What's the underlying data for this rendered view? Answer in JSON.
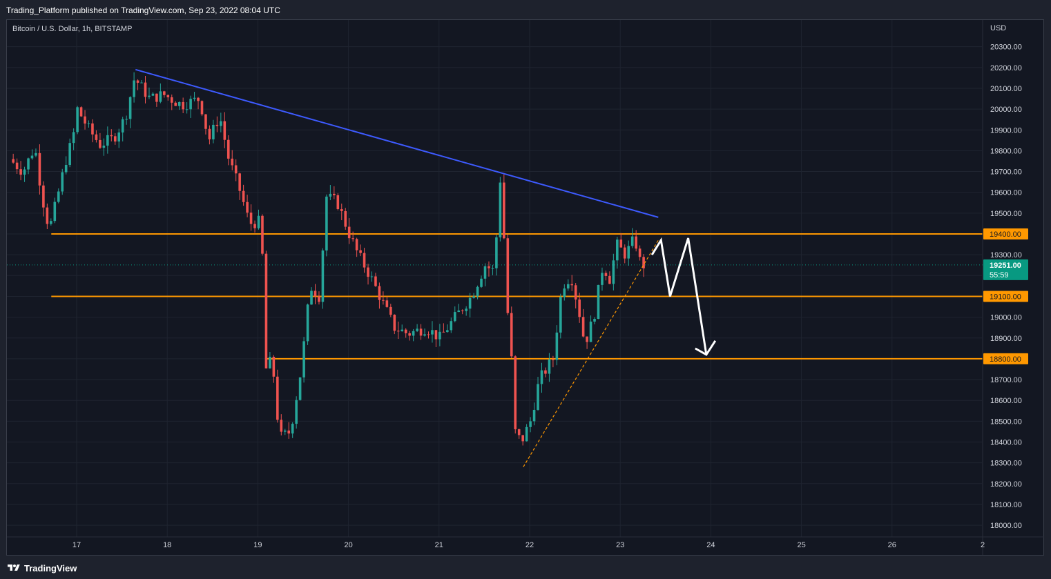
{
  "header": {
    "published": "Trading_Platform published on TradingView.com, Sep 23, 2022 08:04 UTC",
    "symbol": "Bitcoin / U.S. Dollar, 1h, BITSTAMP"
  },
  "footer": {
    "brand": "TradingView",
    "logo_icon": "tradingview-logo-icon"
  },
  "colors": {
    "background": "#131722",
    "frame": "#1e222d",
    "up": "#26a69a",
    "down": "#ef5350",
    "level": "#ff9800",
    "trendline": "#3d5afe",
    "projection": "#ffffff",
    "last_price": "#089981"
  },
  "chart_data": {
    "type": "candlestick",
    "currency_label": "USD",
    "ylim": [
      17950,
      20380
    ],
    "yticks": [
      "20300.00",
      "20200.00",
      "20100.00",
      "20000.00",
      "19900.00",
      "19800.00",
      "19700.00",
      "19600.00",
      "19500.00",
      "19400.00",
      "19300.00",
      "19200.00",
      "19100.00",
      "19000.00",
      "18900.00",
      "18800.00",
      "18700.00",
      "18600.00",
      "18500.00",
      "18400.00",
      "18300.00",
      "18200.00",
      "18100.00",
      "18000.00"
    ],
    "xlim_day": [
      16.28,
      26.95
    ],
    "xticks": [
      {
        "day": 17,
        "label": "17"
      },
      {
        "day": 18,
        "label": "18"
      },
      {
        "day": 19,
        "label": "19"
      },
      {
        "day": 20,
        "label": "20"
      },
      {
        "day": 21,
        "label": "21"
      },
      {
        "day": 22,
        "label": "22"
      },
      {
        "day": 23,
        "label": "23"
      },
      {
        "day": 24,
        "label": "24"
      },
      {
        "day": 25,
        "label": "25"
      },
      {
        "day": 26,
        "label": "26"
      },
      {
        "day": 27,
        "label": "2"
      }
    ],
    "candle_anchors": [
      {
        "day": 16.3,
        "price": 19760
      },
      {
        "day": 16.45,
        "price": 19700
      },
      {
        "day": 16.58,
        "price": 19820
      },
      {
        "day": 16.66,
        "price": 19580
      },
      {
        "day": 16.74,
        "price": 19420
      },
      {
        "day": 16.82,
        "price": 19560
      },
      {
        "day": 16.92,
        "price": 19750
      },
      {
        "day": 17.0,
        "price": 19860
      },
      {
        "day": 17.05,
        "price": 20000
      },
      {
        "day": 17.18,
        "price": 19900
      },
      {
        "day": 17.3,
        "price": 19830
      },
      {
        "day": 17.45,
        "price": 19860
      },
      {
        "day": 17.58,
        "price": 19960
      },
      {
        "day": 17.68,
        "price": 20150
      },
      {
        "day": 17.85,
        "price": 20050
      },
      {
        "day": 18.0,
        "price": 20070
      },
      {
        "day": 18.2,
        "price": 20020
      },
      {
        "day": 18.4,
        "price": 20050
      },
      {
        "day": 18.5,
        "price": 19850
      },
      {
        "day": 18.62,
        "price": 19970
      },
      {
        "day": 18.72,
        "price": 19760
      },
      {
        "day": 18.85,
        "price": 19600
      },
      {
        "day": 18.95,
        "price": 19450
      },
      {
        "day": 19.08,
        "price": 19460
      },
      {
        "day": 19.13,
        "price": 18750
      },
      {
        "day": 19.2,
        "price": 18800
      },
      {
        "day": 19.28,
        "price": 18420
      },
      {
        "day": 19.4,
        "price": 18450
      },
      {
        "day": 19.52,
        "price": 18750
      },
      {
        "day": 19.62,
        "price": 19150
      },
      {
        "day": 19.72,
        "price": 19100
      },
      {
        "day": 19.8,
        "price": 19580
      },
      {
        "day": 19.92,
        "price": 19550
      },
      {
        "day": 20.05,
        "price": 19400
      },
      {
        "day": 20.15,
        "price": 19300
      },
      {
        "day": 20.28,
        "price": 19200
      },
      {
        "day": 20.42,
        "price": 19070
      },
      {
        "day": 20.55,
        "price": 18950
      },
      {
        "day": 20.7,
        "price": 18920
      },
      {
        "day": 20.9,
        "price": 18950
      },
      {
        "day": 21.05,
        "price": 18900
      },
      {
        "day": 21.22,
        "price": 19000
      },
      {
        "day": 21.4,
        "price": 19100
      },
      {
        "day": 21.55,
        "price": 19250
      },
      {
        "day": 21.65,
        "price": 19220
      },
      {
        "day": 21.73,
        "price": 19750
      },
      {
        "day": 21.78,
        "price": 19100
      },
      {
        "day": 21.83,
        "price": 18900
      },
      {
        "day": 21.88,
        "price": 18450
      },
      {
        "day": 21.95,
        "price": 18400
      },
      {
        "day": 22.05,
        "price": 18500
      },
      {
        "day": 22.15,
        "price": 18700
      },
      {
        "day": 22.3,
        "price": 18800
      },
      {
        "day": 22.4,
        "price": 19150
      },
      {
        "day": 22.5,
        "price": 19200
      },
      {
        "day": 22.6,
        "price": 19000
      },
      {
        "day": 22.65,
        "price": 18870
      },
      {
        "day": 22.75,
        "price": 19000
      },
      {
        "day": 22.85,
        "price": 19250
      },
      {
        "day": 22.93,
        "price": 19180
      },
      {
        "day": 23.0,
        "price": 19350
      },
      {
        "day": 23.1,
        "price": 19300
      },
      {
        "day": 23.2,
        "price": 19380
      },
      {
        "day": 23.27,
        "price": 19250
      }
    ],
    "levels": [
      {
        "price": 19400,
        "label": "19400.00",
        "from_day": 16.72
      },
      {
        "price": 19100,
        "label": "19100.00",
        "from_day": 16.72
      },
      {
        "price": 18800,
        "label": "18800.00",
        "from_day": 19.08
      }
    ],
    "last_price": {
      "price": 19251,
      "label": "19251.00",
      "countdown": "55:59"
    },
    "trendline": [
      {
        "day": 17.65,
        "price": 20190
      },
      {
        "day": 23.42,
        "price": 19480
      }
    ],
    "support_trendline": [
      {
        "day": 21.93,
        "price": 18280
      },
      {
        "day": 23.42,
        "price": 19370
      }
    ],
    "projection_path": [
      {
        "day": 23.35,
        "price": 19300
      },
      {
        "day": 23.45,
        "price": 19370
      },
      {
        "day": 23.55,
        "price": 19100
      },
      {
        "day": 23.75,
        "price": 19380
      },
      {
        "day": 23.95,
        "price": 18820
      }
    ]
  }
}
